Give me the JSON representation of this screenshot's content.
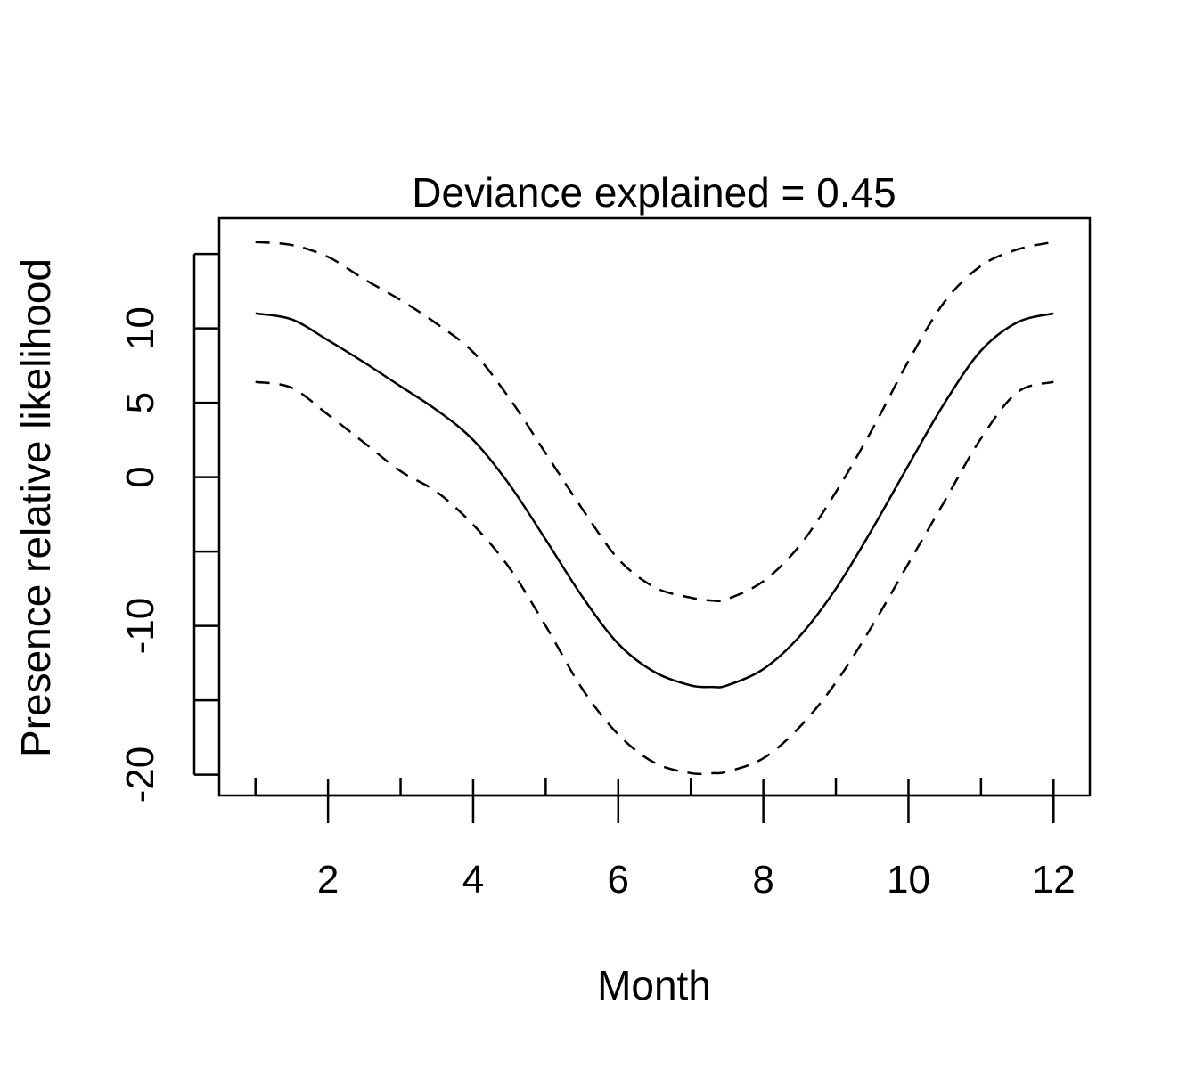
{
  "chart_data": {
    "type": "line",
    "title": "Deviance explained = 0.45",
    "xlabel": "Month",
    "ylabel": "Presence relative likelihood",
    "xlim": [
      0.5,
      12.5
    ],
    "ylim": [
      -21.4,
      17.4
    ],
    "x_ticks": [
      1,
      2,
      3,
      4,
      5,
      6,
      7,
      8,
      9,
      10,
      11,
      12
    ],
    "x_tick_labels": [
      "",
      "2",
      "",
      "4",
      "",
      "6",
      "",
      "8",
      "",
      "10",
      "",
      "12"
    ],
    "y_ticks": [
      -20,
      -15,
      -10,
      -5,
      0,
      5,
      10,
      15
    ],
    "y_tick_labels": [
      "-20",
      "",
      "-10",
      "",
      "0",
      "5",
      "10",
      ""
    ],
    "grid": false,
    "legend": "none",
    "x": [
      1,
      1.5,
      2,
      2.5,
      3,
      3.5,
      4,
      4.5,
      5,
      5.5,
      6,
      6.5,
      7,
      7.3,
      7.5,
      8,
      8.5,
      9,
      9.5,
      10,
      10.5,
      11,
      11.5,
      12
    ],
    "series": [
      {
        "style": "solid",
        "values": [
          11.0,
          10.6,
          9.2,
          7.7,
          6.1,
          4.5,
          2.5,
          -0.5,
          -4.2,
          -8.0,
          -11.2,
          -13.1,
          -14.0,
          -14.1,
          -14.0,
          -12.9,
          -10.7,
          -7.5,
          -3.5,
          0.8,
          5.0,
          8.5,
          10.4,
          11.0
        ]
      },
      {
        "style": "dashed",
        "values": [
          15.8,
          15.6,
          14.8,
          13.3,
          11.9,
          10.3,
          8.4,
          5.3,
          1.6,
          -2.1,
          -5.5,
          -7.4,
          -8.1,
          -8.3,
          -8.2,
          -7.0,
          -4.6,
          -1.0,
          3.2,
          7.8,
          11.8,
          14.2,
          15.3,
          15.8
        ]
      },
      {
        "style": "dashed",
        "values": [
          6.4,
          6.0,
          4.2,
          2.3,
          0.4,
          -1.0,
          -3.2,
          -6.1,
          -10.0,
          -14.2,
          -17.3,
          -19.2,
          -19.9,
          -19.9,
          -19.8,
          -18.9,
          -16.8,
          -13.8,
          -10.0,
          -5.8,
          -1.6,
          2.6,
          5.7,
          6.4
        ]
      }
    ]
  }
}
